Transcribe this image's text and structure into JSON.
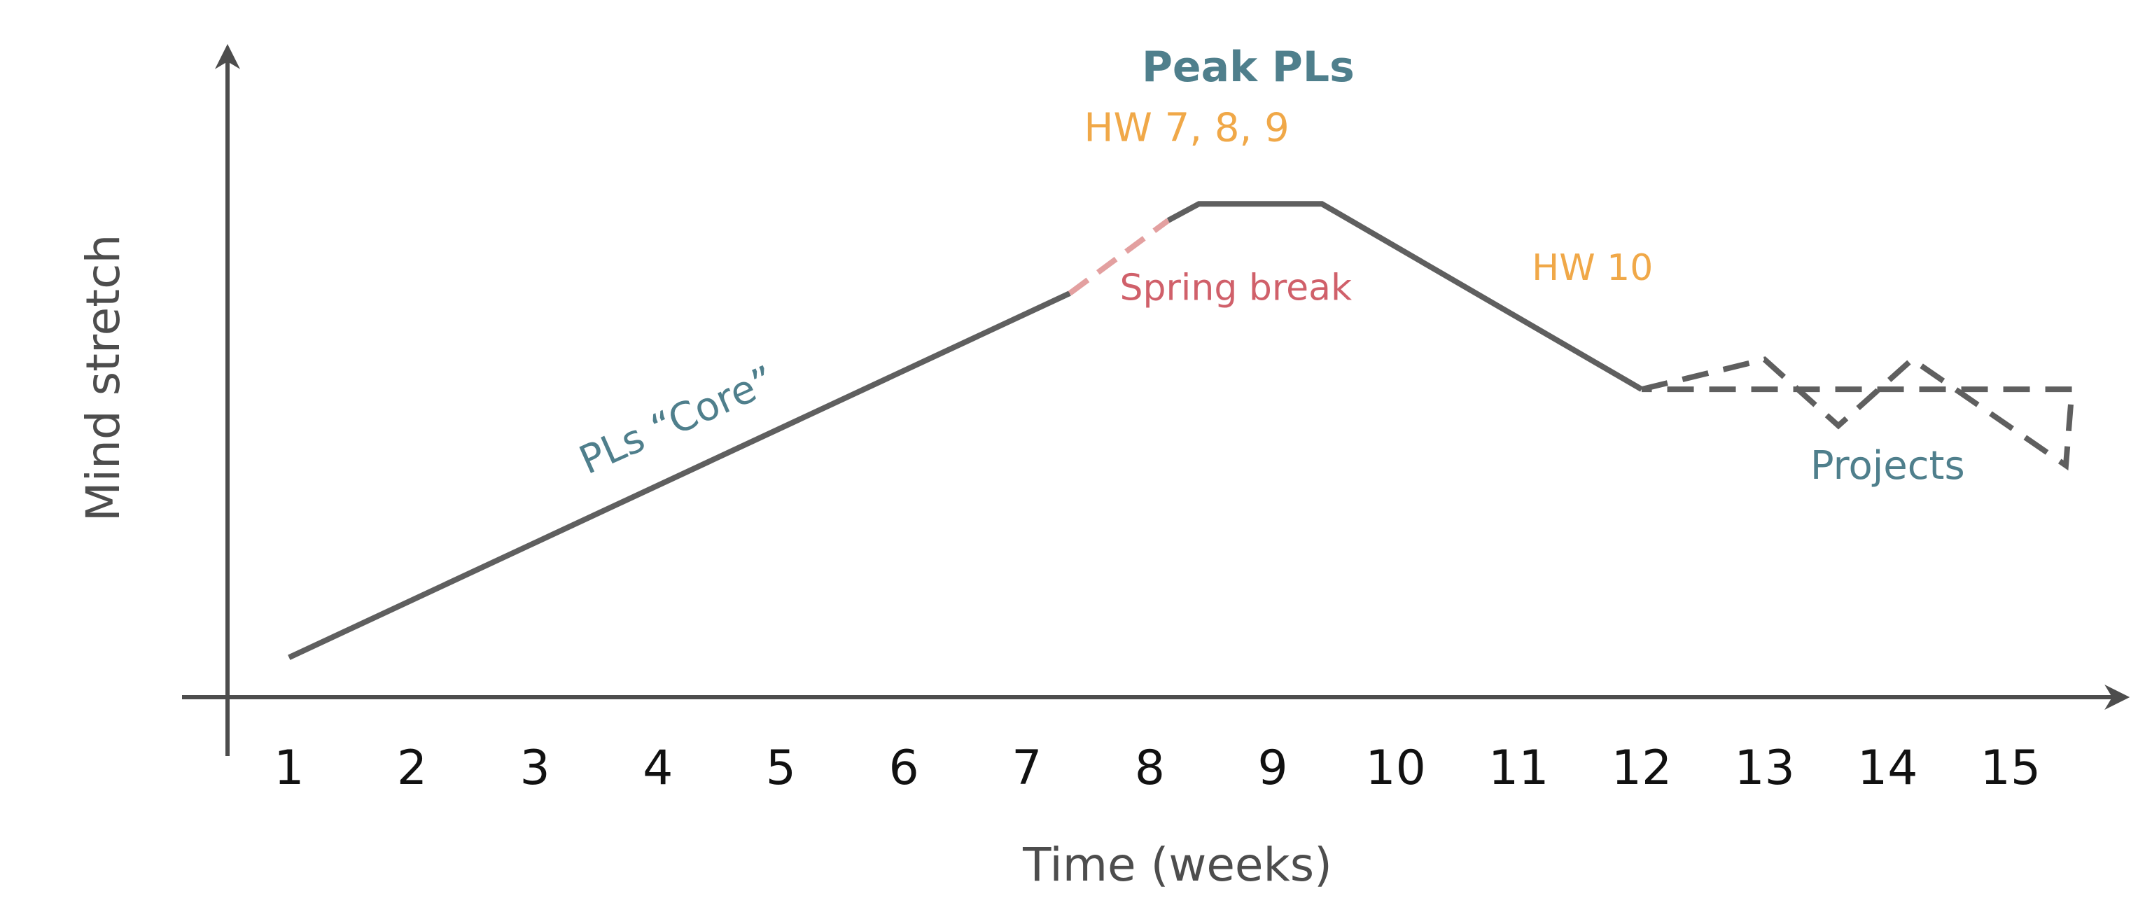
{
  "chart_data": {
    "type": "line",
    "xlabel": "Time (weeks)",
    "ylabel": "Mind stretch",
    "x_ticks": [
      "1",
      "2",
      "3",
      "4",
      "5",
      "6",
      "7",
      "8",
      "9",
      "10",
      "11",
      "12",
      "13",
      "14",
      "15"
    ],
    "xlim": [
      0.5,
      15.9
    ],
    "ylim": [
      0,
      10
    ],
    "grid": false,
    "legend": "none",
    "colors": {
      "axis": "#4d4d4d",
      "line": "#5f5f5f",
      "spring_break": "#e3a0a0",
      "teal": "#4f7f8c",
      "orange": "#f0a848",
      "red": "#d0606a"
    },
    "series": [
      {
        "style": "solid",
        "points": [
          [
            1.0,
            0.6
          ],
          [
            7.35,
            6.1
          ]
        ]
      },
      {
        "style": "dashed-pink",
        "points": [
          [
            7.35,
            6.1
          ],
          [
            8.15,
            7.2
          ]
        ]
      },
      {
        "style": "solid",
        "points": [
          [
            8.15,
            7.2
          ],
          [
            8.4,
            7.45
          ],
          [
            9.4,
            7.45
          ],
          [
            12.0,
            4.65
          ]
        ]
      },
      {
        "style": "dashed",
        "points": [
          [
            12.0,
            4.65
          ],
          [
            13.0,
            5.1
          ],
          [
            13.6,
            4.1
          ],
          [
            14.2,
            5.1
          ],
          [
            15.45,
            3.5
          ],
          [
            15.5,
            4.65
          ],
          [
            12.0,
            4.65
          ]
        ]
      }
    ],
    "annotations": [
      {
        "id": "peak",
        "text": "Peak PLs",
        "x": 8.8,
        "y": 9.3,
        "color": "teal",
        "bold": true,
        "size": "large"
      },
      {
        "id": "hw789",
        "text": "HW 7, 8, 9",
        "x": 8.3,
        "y": 8.4,
        "color": "orange",
        "bold": false,
        "size": "medium"
      },
      {
        "id": "spring",
        "text": "Spring break",
        "x": 8.7,
        "y": 6.0,
        "color": "red",
        "bold": false,
        "size": "small"
      },
      {
        "id": "core",
        "text": "PLs “Core”",
        "x": 4.2,
        "y": 4.0,
        "color": "teal",
        "bold": false,
        "size": "medium",
        "rotate": -24
      },
      {
        "id": "hw10",
        "text": "HW 10",
        "x": 11.6,
        "y": 6.3,
        "color": "orange",
        "bold": false,
        "size": "small"
      },
      {
        "id": "projects",
        "text": "Projects",
        "x": 14.0,
        "y": 3.3,
        "color": "teal",
        "bold": false,
        "size": "medium"
      }
    ]
  }
}
